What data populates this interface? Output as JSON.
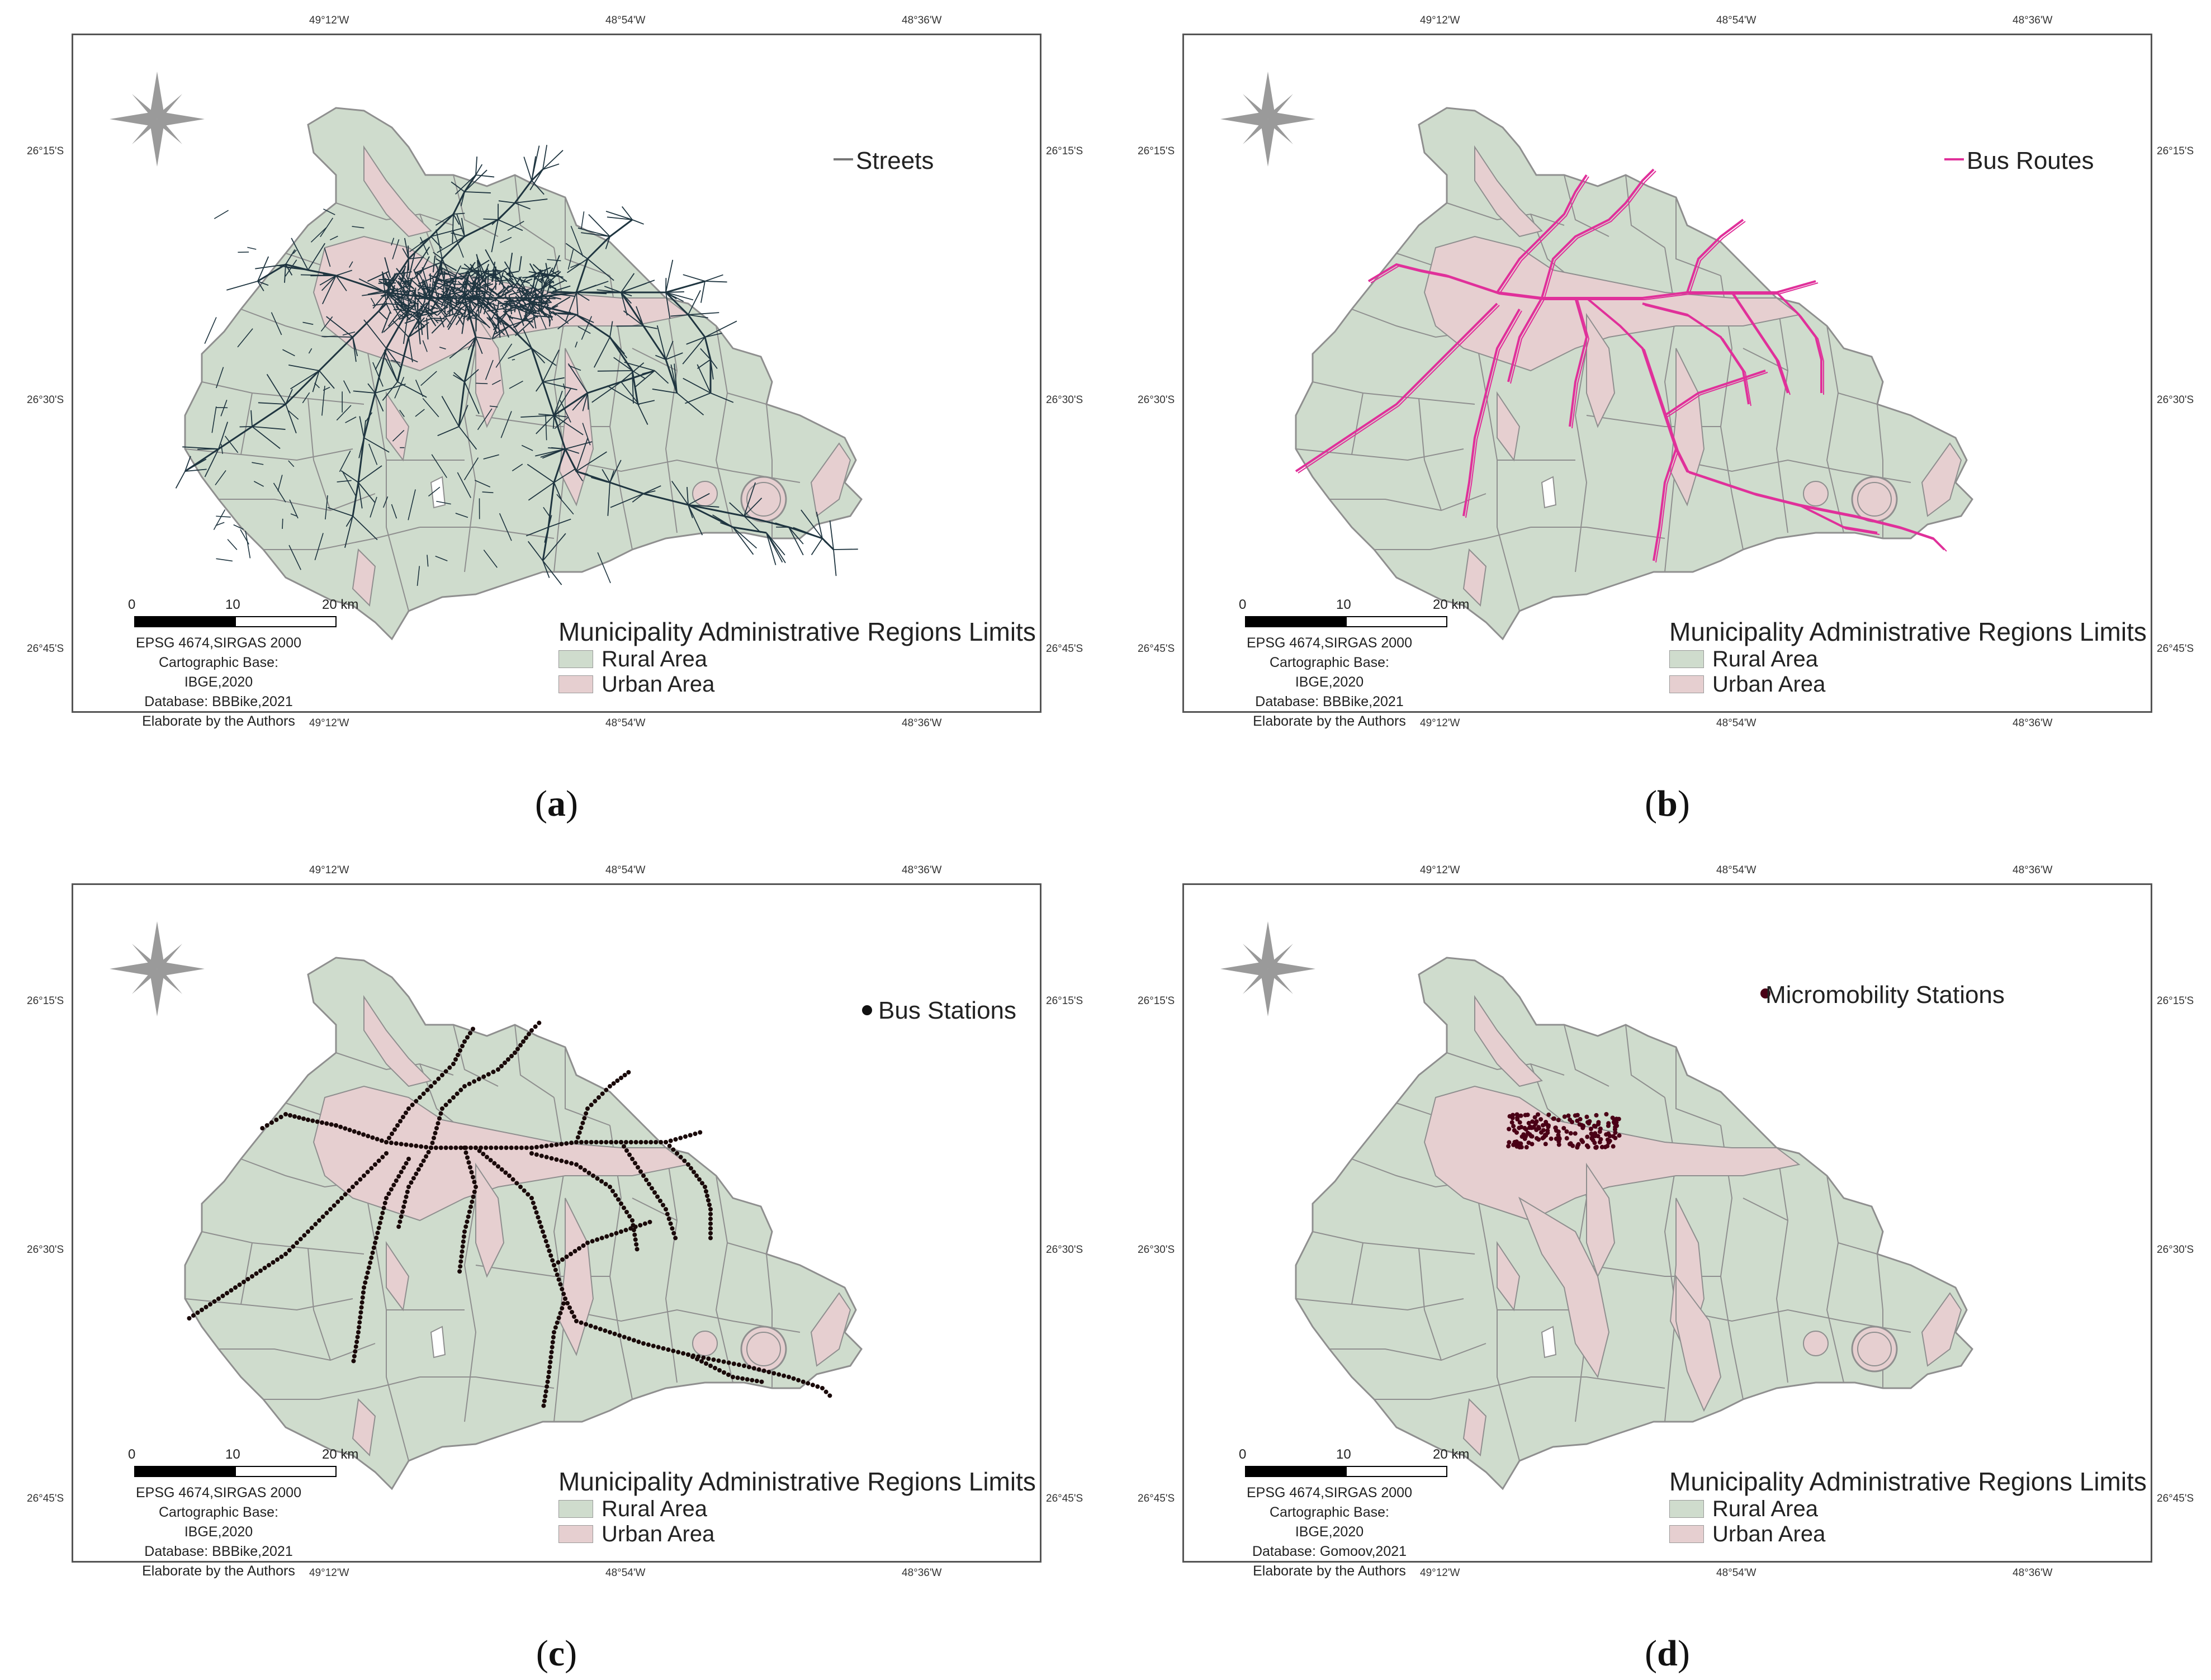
{
  "colors": {
    "rural": "#cfdccd",
    "urban": "#e6cfd0",
    "border": "#8f8f8f",
    "streets": "#1f3540",
    "bus_routes": "#e0309a",
    "bus_stations": "#1a0a0a",
    "micromobility": "#4a0016",
    "compass": "#9a9a9a"
  },
  "coordinate_labels": {
    "top": [
      "49°12'W",
      "48°54'W",
      "48°36'W"
    ],
    "bottom": [
      "49°12'W",
      "48°54'W",
      "48°36'W"
    ],
    "left": [
      "26°15'S",
      "26°30'S",
      "26°45'S"
    ],
    "right": [
      "26°15'S",
      "26°30'S",
      "26°45'S"
    ]
  },
  "scale_bar": {
    "labels": [
      "0",
      "10",
      "20 km"
    ]
  },
  "legend": {
    "title": "Municipality Administrative Regions Limits",
    "rural": "Rural Area",
    "urban": "Urban Area"
  },
  "panels": [
    {
      "id": "a",
      "caption_letter": "a",
      "layer": {
        "label": "Streets",
        "icon": "line-icon",
        "type": "streets"
      },
      "metadata": [
        "EPSG 4674,SIRGAS 2000",
        "Cartographic Base: IBGE,2020",
        "Database: BBBike,2021",
        "Elaborate by the Authors"
      ]
    },
    {
      "id": "b",
      "caption_letter": "b",
      "layer": {
        "label": "Bus Routes",
        "icon": "line-icon",
        "type": "bus_routes"
      },
      "metadata": [
        "EPSG 4674,SIRGAS 2000",
        "Cartographic Base: IBGE,2020",
        "Database: BBBike,2021",
        "Elaborate by the Authors"
      ]
    },
    {
      "id": "c",
      "caption_letter": "c",
      "layer": {
        "label": "Bus Stations",
        "icon": "dot-icon",
        "type": "bus_stations"
      },
      "metadata": [
        "EPSG 4674,SIRGAS 2000",
        "Cartographic Base: IBGE,2020",
        "Database: BBBike,2021",
        "Elaborate by the Authors"
      ]
    },
    {
      "id": "d",
      "caption_letter": "d",
      "layer": {
        "label": "Micromobility Stations",
        "icon": "dot-icon",
        "type": "micromobility"
      },
      "metadata": [
        "EPSG 4674,SIRGAS 2000",
        "Cartographic Base: IBGE,2020",
        "Database: Gomoov,2021",
        "Elaborate by the Authors"
      ]
    }
  ]
}
